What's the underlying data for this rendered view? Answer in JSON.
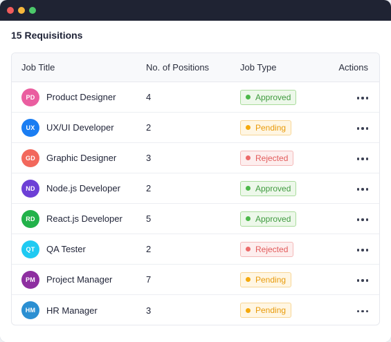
{
  "header": {
    "title": "15 Requisitions"
  },
  "colors": {
    "window_dots": [
      "#f25c5c",
      "#f6b73c",
      "#4cc86a"
    ],
    "status": {
      "Approved": {
        "text": "#3f9a3f",
        "bg": "#edf8ea",
        "border": "#a9dc9c",
        "dot": "#4cb84a"
      },
      "Pending": {
        "text": "#e89a0a",
        "bg": "#fff6e3",
        "border": "#f7d695",
        "dot": "#f5a90c"
      },
      "Rejected": {
        "text": "#e25a5a",
        "bg": "#fdeeee",
        "border": "#f4b9b9",
        "dot": "#ec6a6a"
      }
    }
  },
  "table": {
    "columns": [
      "Job Title",
      "No. of Positions",
      "Job Type",
      "Actions"
    ],
    "rows": [
      {
        "initials": "PD",
        "avatar_color": "#ea5ea0",
        "title": "Product Designer",
        "positions": "4",
        "status": "Approved"
      },
      {
        "initials": "UX",
        "avatar_color": "#1a7df2",
        "title": "UX/UI Developer",
        "positions": "2",
        "status": "Pending"
      },
      {
        "initials": "GD",
        "avatar_color": "#f2685c",
        "title": "Graphic Designer",
        "positions": "3",
        "status": "Rejected"
      },
      {
        "initials": "ND",
        "avatar_color": "#6d3fd6",
        "title": "Node.js Developer",
        "positions": "2",
        "status": "Approved"
      },
      {
        "initials": "RD",
        "avatar_color": "#22b24a",
        "title": "React.js Developer",
        "positions": "5",
        "status": "Approved"
      },
      {
        "initials": "QT",
        "avatar_color": "#1fcaf2",
        "title": "QA Tester",
        "positions": "2",
        "status": "Rejected"
      },
      {
        "initials": "PM",
        "avatar_color": "#8e2fa0",
        "title": "Project Manager",
        "positions": "7",
        "status": "Pending"
      },
      {
        "initials": "HM",
        "avatar_color": "#2b8fd2",
        "title": "HR Manager",
        "positions": "3",
        "status": "Pending"
      }
    ]
  },
  "icons": {
    "row_action": "more-horizontal-icon"
  }
}
